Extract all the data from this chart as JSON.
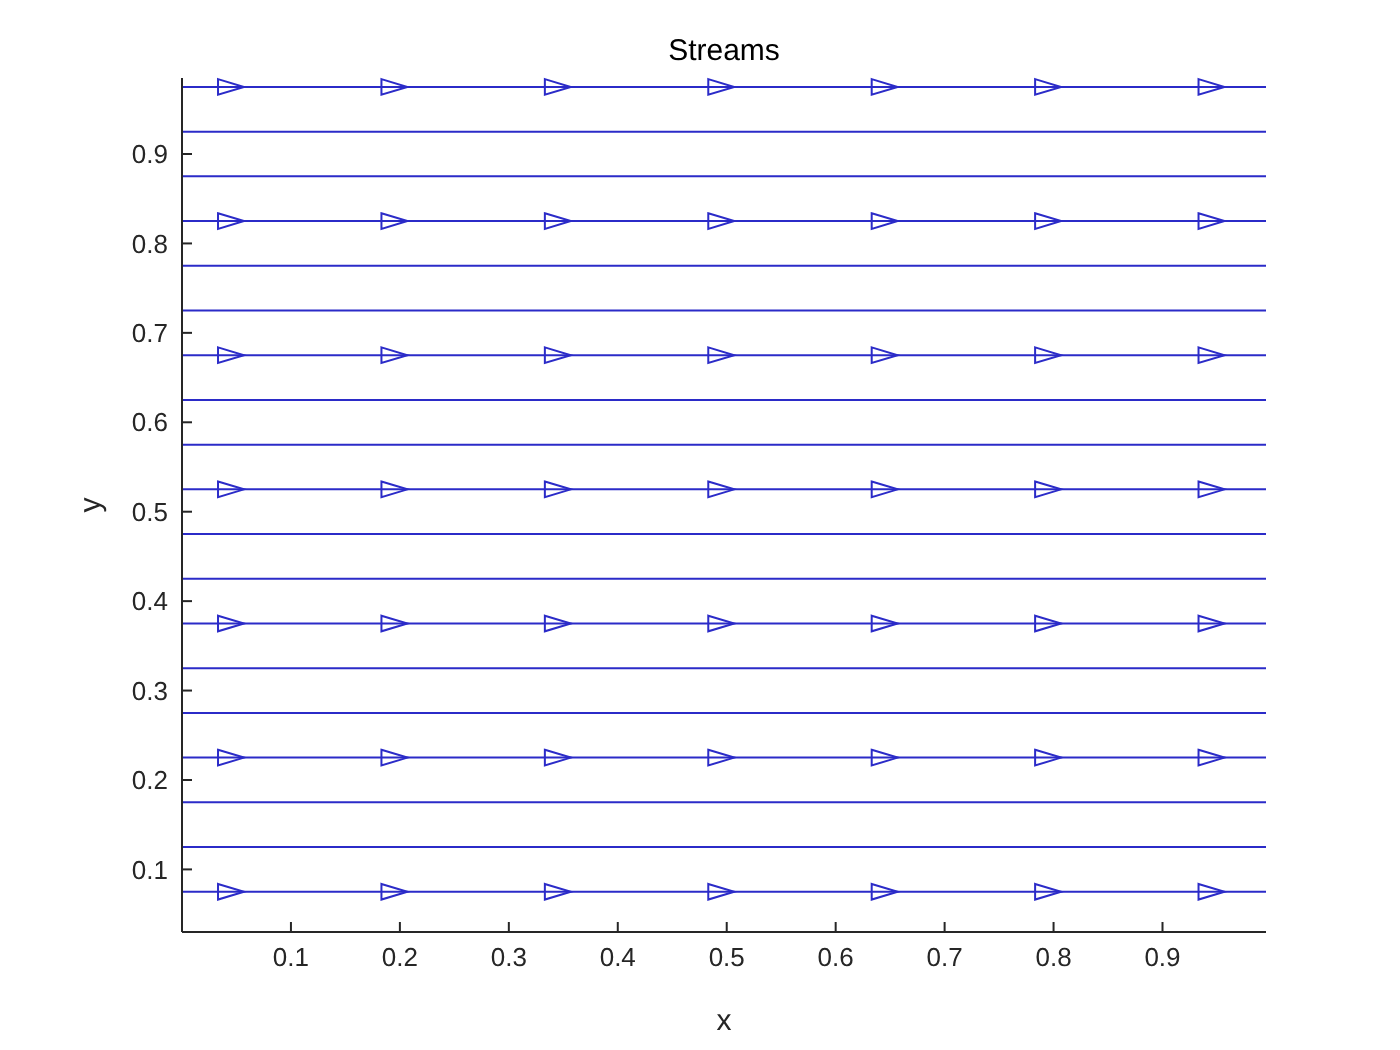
{
  "chart_data": {
    "type": "line",
    "title": "Streams",
    "xlabel": "x",
    "ylabel": "y",
    "xlim": [
      0,
      0.995
    ],
    "ylim": [
      0.03,
      0.985
    ],
    "xticks": [
      0.1,
      0.2,
      0.3,
      0.4,
      0.5,
      0.6,
      0.7,
      0.8,
      0.9
    ],
    "yticks": [
      0.1,
      0.2,
      0.3,
      0.4,
      0.5,
      0.6,
      0.7,
      0.8,
      0.9
    ],
    "grid": false,
    "series": [
      {
        "color": "#2b2bc8",
        "x": [
          0,
          0.995
        ],
        "values": [
          0.075,
          0.075
        ]
      },
      {
        "color": "#2b2bc8",
        "x": [
          0,
          0.995
        ],
        "values": [
          0.125,
          0.125
        ]
      },
      {
        "color": "#2b2bc8",
        "x": [
          0,
          0.995
        ],
        "values": [
          0.175,
          0.175
        ]
      },
      {
        "color": "#2b2bc8",
        "x": [
          0,
          0.995
        ],
        "values": [
          0.225,
          0.225
        ]
      },
      {
        "color": "#2b2bc8",
        "x": [
          0,
          0.995
        ],
        "values": [
          0.275,
          0.275
        ]
      },
      {
        "color": "#2b2bc8",
        "x": [
          0,
          0.995
        ],
        "values": [
          0.325,
          0.325
        ]
      },
      {
        "color": "#2b2bc8",
        "x": [
          0,
          0.995
        ],
        "values": [
          0.375,
          0.375
        ]
      },
      {
        "color": "#2b2bc8",
        "x": [
          0,
          0.995
        ],
        "values": [
          0.425,
          0.425
        ]
      },
      {
        "color": "#2b2bc8",
        "x": [
          0,
          0.995
        ],
        "values": [
          0.475,
          0.475
        ]
      },
      {
        "color": "#2b2bc8",
        "x": [
          0,
          0.995
        ],
        "values": [
          0.525,
          0.525
        ]
      },
      {
        "color": "#2b2bc8",
        "x": [
          0,
          0.995
        ],
        "values": [
          0.575,
          0.575
        ]
      },
      {
        "color": "#2b2bc8",
        "x": [
          0,
          0.995
        ],
        "values": [
          0.625,
          0.625
        ]
      },
      {
        "color": "#2b2bc8",
        "x": [
          0,
          0.995
        ],
        "values": [
          0.675,
          0.675
        ]
      },
      {
        "color": "#2b2bc8",
        "x": [
          0,
          0.995
        ],
        "values": [
          0.725,
          0.725
        ]
      },
      {
        "color": "#2b2bc8",
        "x": [
          0,
          0.995
        ],
        "values": [
          0.775,
          0.775
        ]
      },
      {
        "color": "#2b2bc8",
        "x": [
          0,
          0.995
        ],
        "values": [
          0.825,
          0.825
        ]
      },
      {
        "color": "#2b2bc8",
        "x": [
          0,
          0.995
        ],
        "values": [
          0.875,
          0.875
        ]
      },
      {
        "color": "#2b2bc8",
        "x": [
          0,
          0.995
        ],
        "values": [
          0.925,
          0.925
        ]
      },
      {
        "color": "#2b2bc8",
        "x": [
          0,
          0.995
        ],
        "values": [
          0.975,
          0.975
        ]
      },
      {
        "type": "scatter",
        "marker": "triangle",
        "color": "#2b2bc8",
        "x": [
          0.045,
          0.195,
          0.345,
          0.495,
          0.645,
          0.795,
          0.945,
          0.045,
          0.195,
          0.345,
          0.495,
          0.645,
          0.795,
          0.945,
          0.045,
          0.195,
          0.345,
          0.495,
          0.645,
          0.795,
          0.945,
          0.045,
          0.195,
          0.345,
          0.495,
          0.645,
          0.795,
          0.945,
          0.045,
          0.195,
          0.345,
          0.495,
          0.645,
          0.795,
          0.945,
          0.045,
          0.195,
          0.345,
          0.495,
          0.645,
          0.795,
          0.945,
          0.045,
          0.195,
          0.345,
          0.495,
          0.645,
          0.795,
          0.945
        ],
        "values": [
          0.075,
          0.075,
          0.075,
          0.075,
          0.075,
          0.075,
          0.075,
          0.225,
          0.225,
          0.225,
          0.225,
          0.225,
          0.225,
          0.225,
          0.375,
          0.375,
          0.375,
          0.375,
          0.375,
          0.375,
          0.375,
          0.525,
          0.525,
          0.525,
          0.525,
          0.525,
          0.525,
          0.525,
          0.675,
          0.675,
          0.675,
          0.675,
          0.675,
          0.675,
          0.675,
          0.825,
          0.825,
          0.825,
          0.825,
          0.825,
          0.825,
          0.825,
          0.975,
          0.975,
          0.975,
          0.975,
          0.975,
          0.975,
          0.975
        ]
      }
    ]
  }
}
